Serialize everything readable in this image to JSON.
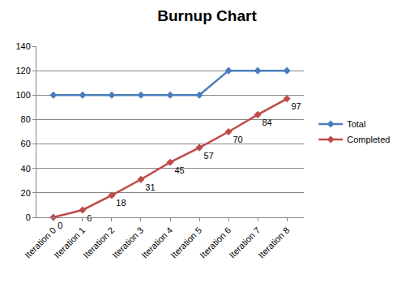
{
  "chart_data": {
    "type": "line",
    "title": "Burnup Chart",
    "categories": [
      "Iteration 0",
      "Iteration 1",
      "Iteration 2",
      "Iteration 3",
      "Iteration 4",
      "Iteration 5",
      "Iteration 6",
      "Iteration 7",
      "Iteration 8"
    ],
    "series": [
      {
        "name": "Total",
        "color": "#4a7ebb",
        "marker": "diamond",
        "values": [
          100,
          100,
          100,
          100,
          100,
          100,
          120,
          120,
          120
        ]
      },
      {
        "name": "Completed",
        "color": "#be4b48",
        "marker": "diamond",
        "data_labels": true,
        "values": [
          0,
          6,
          18,
          31,
          45,
          57,
          70,
          84,
          97
        ]
      }
    ],
    "ylim": [
      0,
      140
    ],
    "yticks": [
      0,
      20,
      40,
      60,
      80,
      100,
      120,
      140
    ],
    "grid": true,
    "legend": "right"
  }
}
